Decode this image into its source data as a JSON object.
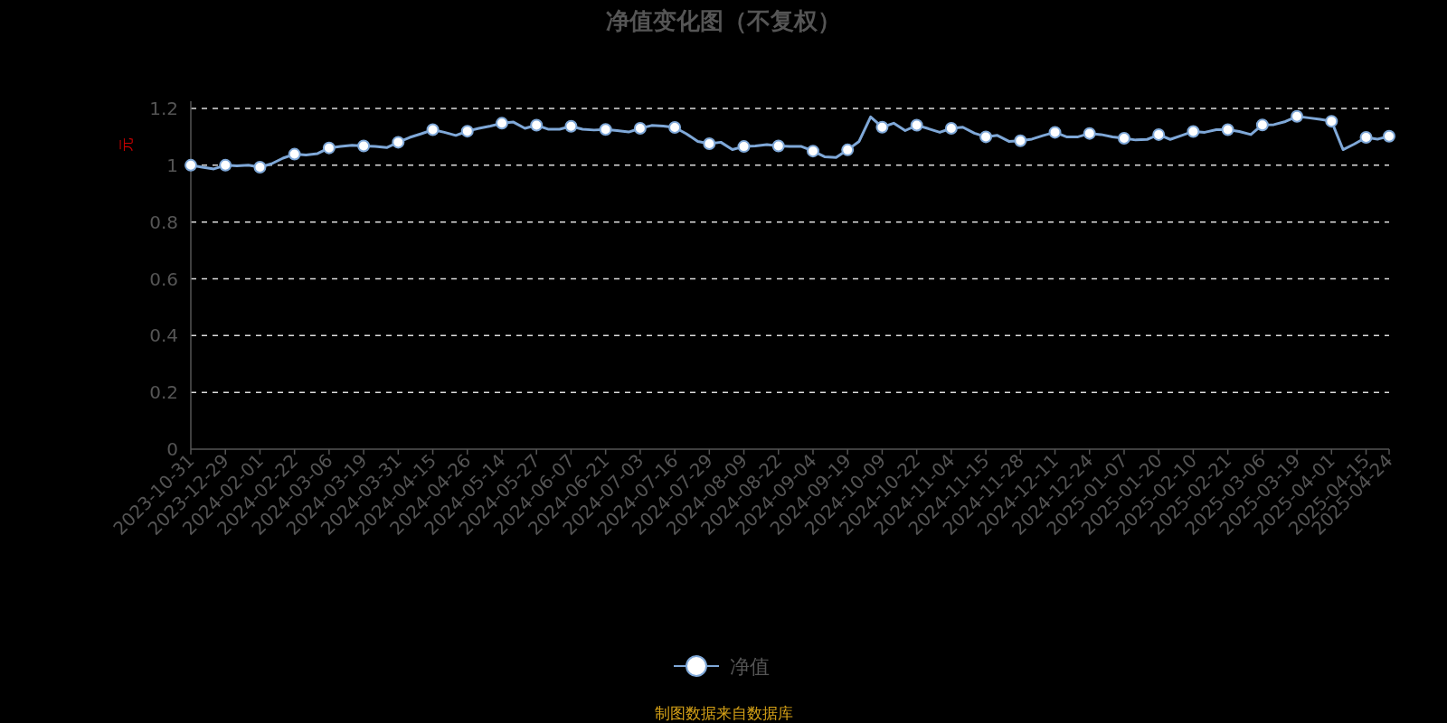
{
  "chart_data": {
    "type": "line",
    "title": "净值变化图（不复权）",
    "ylabel": "元",
    "categories": [
      "2023-10-31",
      null,
      null,
      "2023-12-29",
      null,
      null,
      "2024-02-01",
      null,
      null,
      "2024-02-22",
      null,
      null,
      "2024-03-06",
      null,
      null,
      "2024-03-19",
      null,
      null,
      "2024-03-31",
      null,
      null,
      "2024-04-15",
      null,
      null,
      "2024-04-26",
      null,
      null,
      "2024-05-14",
      null,
      null,
      "2024-05-27",
      null,
      null,
      "2024-06-07",
      null,
      null,
      "2024-06-21",
      null,
      null,
      "2024-07-03",
      null,
      null,
      "2024-07-16",
      null,
      null,
      "2024-07-29",
      null,
      null,
      "2024-08-09",
      null,
      null,
      "2024-08-22",
      null,
      null,
      "2024-09-04",
      null,
      null,
      "2024-09-19",
      null,
      null,
      "2024-10-09",
      null,
      null,
      "2024-10-22",
      null,
      null,
      "2024-11-04",
      null,
      null,
      "2024-11-15",
      null,
      null,
      "2024-11-28",
      null,
      null,
      "2024-12-11",
      null,
      null,
      "2024-12-24",
      null,
      null,
      "2025-01-07",
      null,
      null,
      "2025-01-20",
      null,
      null,
      "2025-02-10",
      null,
      null,
      "2025-02-21",
      null,
      null,
      "2025-03-06",
      null,
      null,
      "2025-03-19",
      null,
      null,
      "2025-04-01",
      null,
      null,
      "2025-04-15",
      null,
      "2025-04-24"
    ],
    "series": [
      {
        "name": "净值",
        "color": "#7fa8d8",
        "values": [
          1.0,
          0.993,
          0.987,
          1.0,
          0.998,
          1.0,
          0.993,
          1.005,
          1.025,
          1.039,
          1.036,
          1.041,
          1.061,
          1.066,
          1.07,
          1.068,
          1.066,
          1.062,
          1.081,
          1.098,
          1.111,
          1.125,
          1.116,
          1.105,
          1.12,
          1.13,
          1.138,
          1.148,
          1.152,
          1.13,
          1.141,
          1.127,
          1.127,
          1.137,
          1.127,
          1.124,
          1.126,
          1.122,
          1.117,
          1.13,
          1.14,
          1.138,
          1.133,
          1.111,
          1.084,
          1.076,
          1.081,
          1.055,
          1.066,
          1.068,
          1.073,
          1.068,
          1.066,
          1.066,
          1.05,
          1.03,
          1.027,
          1.054,
          1.084,
          1.17,
          1.134,
          1.148,
          1.122,
          1.141,
          1.129,
          1.116,
          1.13,
          1.134,
          1.113,
          1.1,
          1.105,
          1.084,
          1.086,
          1.092,
          1.105,
          1.116,
          1.1,
          1.1,
          1.112,
          1.108,
          1.1,
          1.095,
          1.089,
          1.091,
          1.108,
          1.091,
          1.105,
          1.119,
          1.116,
          1.125,
          1.125,
          1.119,
          1.108,
          1.142,
          1.143,
          1.154,
          1.172,
          1.167,
          1.162,
          1.155,
          1.055,
          1.075,
          1.098,
          1.092,
          1.102
        ]
      }
    ],
    "ylim": [
      0,
      1.2
    ],
    "yticks": [
      0,
      0.2,
      0.4,
      0.6,
      0.8,
      1,
      1.2
    ],
    "grid": "y",
    "legend": "bottom",
    "line_style": "solid",
    "annotations": [
      "制图数据来自数据库"
    ]
  }
}
